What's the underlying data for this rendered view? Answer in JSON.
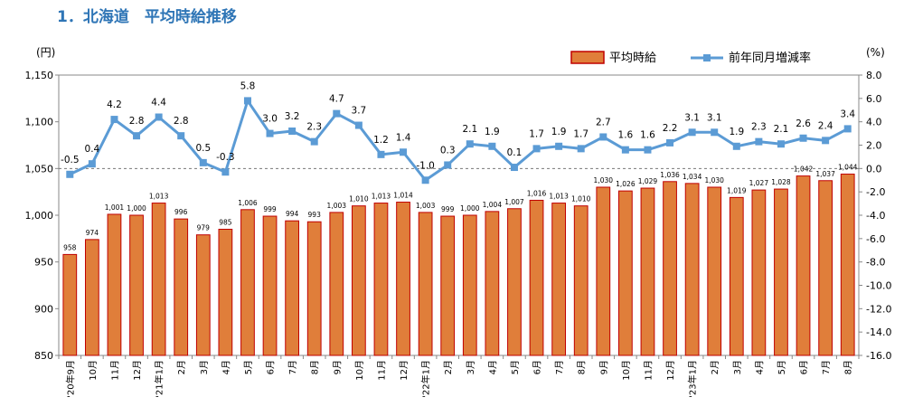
{
  "title": "1．北海道　平均時給推移",
  "chart_data": {
    "type": "bar",
    "title": "1．北海道　平均時給推移",
    "categories": [
      "'20年9月",
      "10月",
      "11月",
      "12月",
      "'21年1月",
      "2月",
      "3月",
      "4月",
      "5月",
      "6月",
      "7月",
      "8月",
      "9月",
      "10月",
      "11月",
      "12月",
      "'22年1月",
      "2月",
      "3月",
      "4月",
      "5月",
      "6月",
      "7月",
      "8月",
      "9月",
      "10月",
      "11月",
      "12月",
      "'23年1月",
      "2月",
      "3月",
      "4月",
      "5月",
      "6月",
      "7月",
      "8月"
    ],
    "series": [
      {
        "name": "平均時給",
        "type": "bar",
        "axis": "left",
        "color": "#E07E3A",
        "values": [
          958,
          974,
          1001,
          1000,
          1013,
          996,
          979,
          985,
          1006,
          999,
          994,
          993,
          1003,
          1010,
          1013,
          1014,
          1003,
          999,
          1000,
          1004,
          1007,
          1016,
          1013,
          1010,
          1030,
          1026,
          1029,
          1036,
          1034,
          1030,
          1019,
          1027,
          1028,
          1042,
          1037,
          1044
        ],
        "labels": [
          "958",
          "974",
          "1,001",
          "1,000",
          "1,013",
          "996",
          "979",
          "985",
          "1,006",
          "999",
          "994",
          "993",
          "1,003",
          "1,010",
          "1,013",
          "1,014",
          "1,003",
          "999",
          "1,000",
          "1,004",
          "1,007",
          "1,016",
          "1,013",
          "1,010",
          "1,030",
          "1,026",
          "1,029",
          "1,036",
          "1,034",
          "1,030",
          "1,019",
          "1,027",
          "1,028",
          "1,042",
          "1,037",
          "1,044"
        ]
      },
      {
        "name": "前年同月増減率",
        "type": "line",
        "axis": "right",
        "color": "#5B9BD5",
        "values": [
          -0.5,
          0.4,
          4.2,
          2.8,
          4.4,
          2.8,
          0.5,
          -0.3,
          5.8,
          3.0,
          3.2,
          2.3,
          4.7,
          3.7,
          1.2,
          1.4,
          -1.0,
          0.3,
          2.1,
          1.9,
          0.1,
          1.7,
          1.9,
          1.7,
          2.7,
          1.6,
          1.6,
          2.2,
          3.1,
          3.1,
          1.9,
          2.3,
          2.1,
          2.6,
          2.4,
          3.4
        ],
        "labels": [
          "-0.5",
          "0.4",
          "4.2",
          "2.8",
          "4.4",
          "2.8",
          "0.5",
          "-0.3",
          "5.8",
          "3.0",
          "3.2",
          "2.3",
          "4.7",
          "3.7",
          "1.2",
          "1.4",
          "-1.0",
          "0.3",
          "2.1",
          "1.9",
          "0.1",
          "1.7",
          "1.9",
          "1.7",
          "2.7",
          "1.6",
          "1.6",
          "2.2",
          "3.1",
          "3.1",
          "1.9",
          "2.3",
          "2.1",
          "2.6",
          "2.4",
          "3.4"
        ]
      }
    ],
    "y_left": {
      "unit_label": "(円)",
      "range": [
        850,
        1150
      ],
      "ticks": [
        850,
        900,
        950,
        1000,
        1050,
        1100,
        1150
      ],
      "tick_labels": [
        "850",
        "900",
        "950",
        "1,000",
        "1,050",
        "1,100",
        "1,150"
      ]
    },
    "y_right": {
      "unit_label": "(%)",
      "range": [
        -16,
        8
      ],
      "ticks": [
        -16,
        -14,
        -12,
        -10,
        -8,
        -6,
        -4,
        -2,
        0,
        2,
        4,
        6,
        8
      ],
      "tick_labels": [
        "-16.0",
        "-14.0",
        "-12.0",
        "-10.0",
        "-8.0",
        "-6.0",
        "-4.0",
        "-2.0",
        "0.0",
        "2.0",
        "4.0",
        "6.0",
        "8.0"
      ]
    },
    "legend": {
      "position": "top-right",
      "entries": [
        "平均時給",
        "前年同月増減率"
      ]
    },
    "reference_line": {
      "axis": "right",
      "value": 0,
      "style": "dashed"
    },
    "grid": false
  }
}
